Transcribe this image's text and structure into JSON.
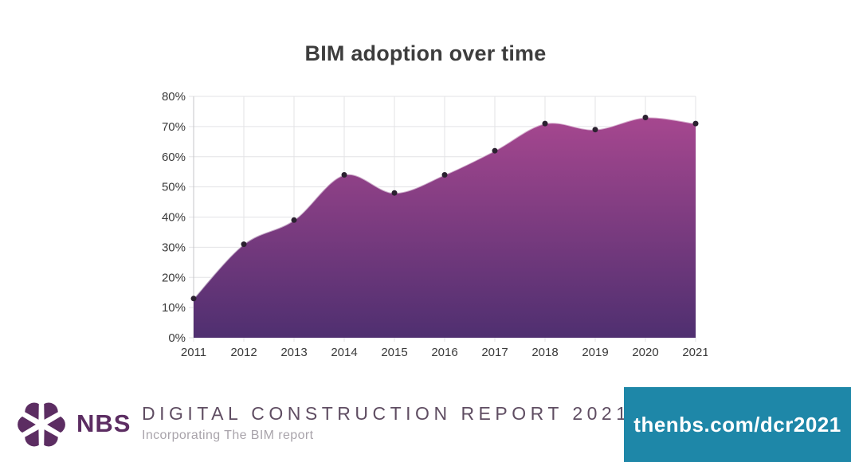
{
  "chart_data": {
    "type": "area",
    "title": "BIM adoption over time",
    "categories": [
      "2011",
      "2012",
      "2013",
      "2014",
      "2015",
      "2016",
      "2017",
      "2018",
      "2019",
      "2020",
      "2021"
    ],
    "series": [
      {
        "name": "BIM adoption",
        "values": [
          13,
          31,
          39,
          54,
          48,
          54,
          62,
          71,
          69,
          73,
          71
        ]
      }
    ],
    "xlabel": "",
    "ylabel": "",
    "ylim": [
      0,
      80
    ],
    "y_tick_step": 10,
    "y_tick_suffix": "%",
    "grid": true,
    "legend": "none",
    "colors": {
      "area_top": "#a6478f",
      "area_bottom": "#4f2f70",
      "line_stroke": "rgba(255,255,255,0.55)",
      "marker": "#2b2130",
      "gridline": "#e3e3e6",
      "axis": "#c6c6c9",
      "tick_label": "#3a3a3a",
      "title_color": "#3d3d3d"
    }
  },
  "footer": {
    "brand": "NBS",
    "report_title": "DIGITAL CONSTRUCTION REPORT 2021",
    "report_subtitle": "Incorporating The BIM report",
    "url_label": "thenbs.com/dcr2021",
    "colors": {
      "brand_purple": "#5c2d62",
      "report_title_purple": "#5f4d62",
      "subtitle_gray": "#a9a4ab",
      "banner_teal": "#1e87a8",
      "banner_text": "#ffffff"
    }
  }
}
